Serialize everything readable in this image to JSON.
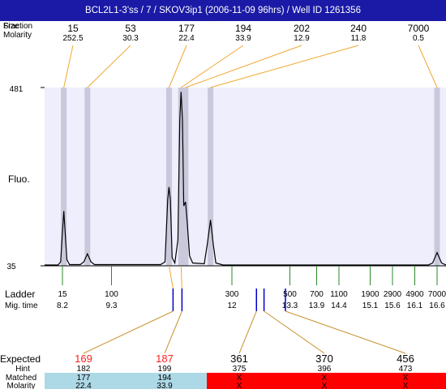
{
  "title": "BCL2L1-3'ss / 7 / SKOV3ip1 (2006-11-09 96hrs) / Well ID 1261356",
  "header": {
    "row1_label": "Fraction\nSize",
    "row2_label": "Molarity"
  },
  "ylabel": "Fluo.",
  "ladder_label": "Ladder",
  "migtime_label": "Mig. time",
  "expected_label": "Expected",
  "hint_label": "Hint",
  "matched_label": "Matched",
  "molarity_label": "Molarity",
  "colors": {
    "title_bg": "#1a1aa6",
    "plot_bg": "#eeeefc",
    "peak_band": "#c9c9dc",
    "peak_link": "#f0a830",
    "ladder_tick": "#2a8a2a",
    "expected_link": "#c89430",
    "matched_ok": "#add8e6",
    "matched_bad": "#ff0000",
    "marker_blue": "#0000cc",
    "expected_red": "#ff2020"
  },
  "chart_data": {
    "type": "line",
    "ylim": [
      35,
      481
    ],
    "yticks": [
      481,
      35
    ],
    "migtime_range": [
      7.8,
      16.8
    ],
    "peaks": [
      {
        "size": "15",
        "molarity": "252.5",
        "migtime": 8.23
      },
      {
        "size": "53",
        "molarity": "30.3",
        "migtime": 8.76
      },
      {
        "size": "177",
        "molarity": "22.4",
        "migtime": 10.59
      },
      {
        "size": "194",
        "molarity": "33.9",
        "migtime": 10.86
      },
      {
        "size": "202",
        "molarity": "12.9",
        "migtime": 10.96
      },
      {
        "size": "240",
        "molarity": "11.8",
        "migtime": 11.52
      },
      {
        "size": "7000",
        "molarity": "0.5",
        "migtime": 16.6
      }
    ],
    "trace": [
      [
        7.8,
        37
      ],
      [
        8.1,
        37
      ],
      [
        8.16,
        45
      ],
      [
        8.2,
        120
      ],
      [
        8.23,
        172
      ],
      [
        8.26,
        120
      ],
      [
        8.3,
        50
      ],
      [
        8.36,
        38
      ],
      [
        8.6,
        38
      ],
      [
        8.68,
        45
      ],
      [
        8.76,
        65
      ],
      [
        8.84,
        45
      ],
      [
        8.92,
        38
      ],
      [
        10.4,
        38
      ],
      [
        10.5,
        45
      ],
      [
        10.56,
        200
      ],
      [
        10.59,
        232
      ],
      [
        10.62,
        200
      ],
      [
        10.66,
        55
      ],
      [
        10.72,
        42
      ],
      [
        10.79,
        100
      ],
      [
        10.83,
        400
      ],
      [
        10.86,
        470
      ],
      [
        10.89,
        400
      ],
      [
        10.92,
        185
      ],
      [
        10.96,
        195
      ],
      [
        11.0,
        140
      ],
      [
        11.05,
        60
      ],
      [
        11.12,
        42
      ],
      [
        11.38,
        40
      ],
      [
        11.45,
        90
      ],
      [
        11.52,
        150
      ],
      [
        11.58,
        90
      ],
      [
        11.64,
        42
      ],
      [
        11.8,
        37
      ],
      [
        16.4,
        37
      ],
      [
        16.5,
        42
      ],
      [
        16.6,
        68
      ],
      [
        16.7,
        42
      ],
      [
        16.8,
        37
      ]
    ],
    "ladder": [
      {
        "size": "15",
        "migtime": "8.2",
        "x": 8.2
      },
      {
        "size": "100",
        "migtime": "9.3",
        "x": 9.3
      },
      {
        "size": "300",
        "migtime": "12",
        "x": 12.0
      },
      {
        "size": "500",
        "migtime": "13.3",
        "x": 13.3
      },
      {
        "size": "700",
        "migtime": "13.9",
        "x": 13.9
      },
      {
        "size": "1100",
        "migtime": "14.4",
        "x": 14.4
      },
      {
        "size": "1900",
        "migtime": "15.1",
        "x": 15.1
      },
      {
        "size": "2900",
        "migtime": "15.6",
        "x": 15.6
      },
      {
        "size": "4900",
        "migtime": "16.1",
        "x": 16.1
      },
      {
        "size": "7000",
        "migtime": "16.6",
        "x": 16.6
      }
    ],
    "expected": [
      {
        "expected": "169",
        "hint": "182",
        "matched": "177",
        "molarity": "22.4",
        "status": "matched",
        "marker_x": 10.68,
        "highlight": true
      },
      {
        "expected": "187",
        "hint": "199",
        "matched": "194",
        "molarity": "33.9",
        "status": "matched",
        "marker_x": 10.88,
        "highlight": true
      },
      {
        "expected": "361",
        "hint": "375",
        "matched": "X",
        "molarity": "X",
        "status": "unmatched",
        "marker_x": 12.55,
        "highlight": false
      },
      {
        "expected": "370",
        "hint": "396",
        "matched": "X",
        "molarity": "X",
        "status": "unmatched",
        "marker_x": 12.72,
        "highlight": false
      },
      {
        "expected": "456",
        "hint": "473",
        "matched": "X",
        "molarity": "X",
        "status": "unmatched",
        "marker_x": 13.2,
        "highlight": false
      }
    ]
  }
}
